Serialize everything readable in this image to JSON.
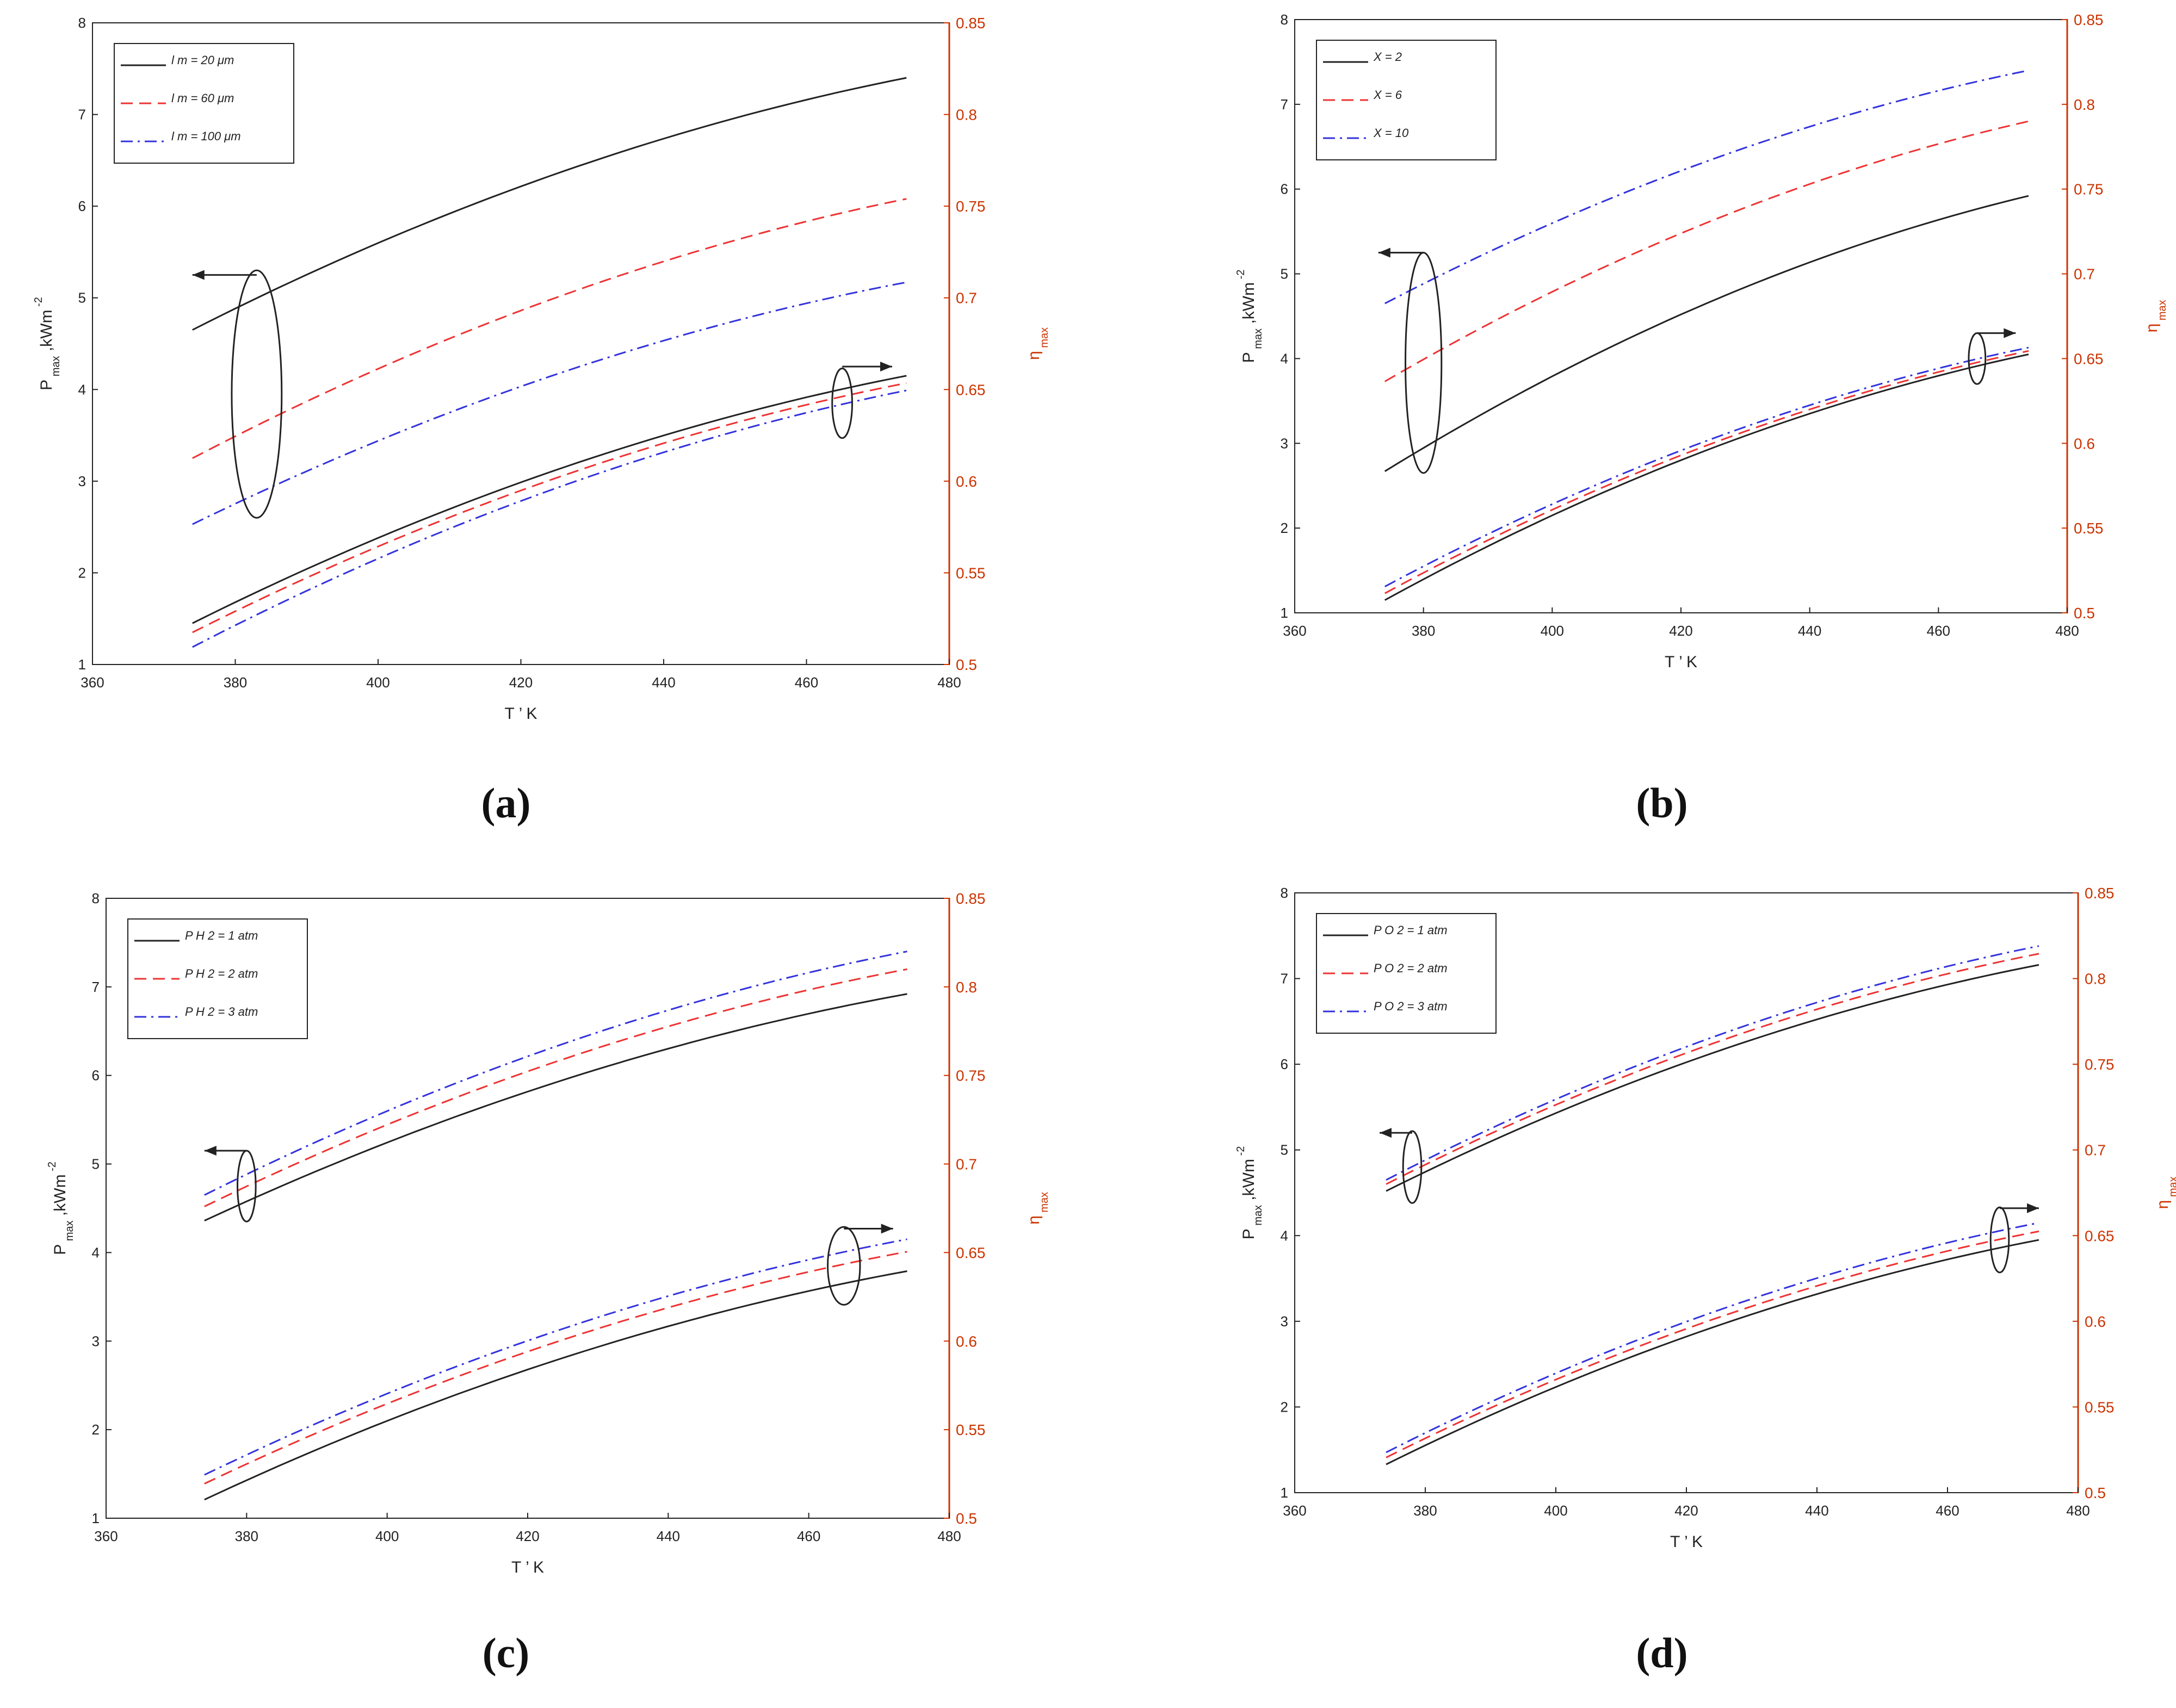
{
  "colors": {
    "series": [
      "#222222",
      "#ee3333",
      "#3333dd"
    ],
    "right_axis": "#cc3300",
    "frame": "#222222"
  },
  "chart_data": [
    {
      "type": "line",
      "caption": "(a)",
      "xlabel": "T ’ K",
      "ylabel_left": "P max ,kWm -2",
      "ylabel_right": "η max",
      "x": [
        374,
        474
      ],
      "xlim": [
        360,
        480
      ],
      "xticks": [
        360,
        380,
        400,
        420,
        440,
        460,
        480
      ],
      "ylim_left": [
        1,
        8
      ],
      "yticks_left": [
        1,
        2,
        3,
        4,
        5,
        6,
        7,
        8
      ],
      "ylim_right": [
        0.5,
        0.85
      ],
      "yticks_right": [
        0.5,
        0.55,
        0.6,
        0.65,
        0.7,
        0.75,
        0.8,
        0.85
      ],
      "legend_position": "top-left",
      "series": [
        {
          "name": "l m = 20 μm",
          "axis": "left",
          "style": "solid",
          "start": 4.65,
          "end": 7.4
        },
        {
          "name": "l m = 60 μm",
          "axis": "left",
          "style": "dashed",
          "start": 3.25,
          "end": 6.08
        },
        {
          "name": "l m = 100 μm",
          "axis": "left",
          "style": "dashdot",
          "start": 2.53,
          "end": 5.17
        },
        {
          "name": "l m = 20 μm",
          "axis": "right",
          "style": "solid",
          "start": 0.5225,
          "end": 0.6575
        },
        {
          "name": "l m = 60 μm",
          "axis": "right",
          "style": "dashed",
          "start": 0.5175,
          "end": 0.6535
        },
        {
          "name": "l m = 100 μm",
          "axis": "right",
          "style": "dashdot",
          "start": 0.5095,
          "end": 0.6495
        }
      ],
      "annotations": [
        {
          "kind": "ellipse-left-arrow",
          "cx": 383,
          "cy": 3.95,
          "rx": 3.5,
          "ry": 1.35,
          "arrow_to": [
            374,
            5.25
          ]
        },
        {
          "kind": "ellipse-right-arrow",
          "cx": 465,
          "cy": 3.85,
          "rx": 1.4,
          "ry": 0.38,
          "arrow_to": [
            472,
            4.25
          ]
        }
      ]
    },
    {
      "type": "line",
      "caption": "(b)",
      "xlabel": "T ’ K",
      "ylabel_left": "P max ,kWm -2",
      "ylabel_right": "η max",
      "x": [
        374,
        474
      ],
      "xlim": [
        360,
        480
      ],
      "xticks": [
        360,
        380,
        400,
        420,
        440,
        460,
        480
      ],
      "ylim_left": [
        1,
        8
      ],
      "yticks_left": [
        1,
        2,
        3,
        4,
        5,
        6,
        7,
        8
      ],
      "ylim_right": [
        0.5,
        0.85
      ],
      "yticks_right": [
        0.5,
        0.55,
        0.6,
        0.65,
        0.7,
        0.75,
        0.8,
        0.85
      ],
      "legend_position": "top-left",
      "series": [
        {
          "name": "X = 2",
          "axis": "left",
          "style": "solid",
          "start": 2.67,
          "end": 5.92
        },
        {
          "name": "X = 6",
          "axis": "left",
          "style": "dashed",
          "start": 3.73,
          "end": 6.8
        },
        {
          "name": "X = 10",
          "axis": "left",
          "style": "dashdot",
          "start": 4.65,
          "end": 7.4
        },
        {
          "name": "X = 2",
          "axis": "right",
          "style": "solid",
          "start": 0.5075,
          "end": 0.6525
        },
        {
          "name": "X = 6",
          "axis": "right",
          "style": "dashed",
          "start": 0.5115,
          "end": 0.6545
        },
        {
          "name": "X = 10",
          "axis": "right",
          "style": "dashdot",
          "start": 0.5155,
          "end": 0.6565
        }
      ],
      "annotations": [
        {
          "kind": "ellipse-left-arrow",
          "cx": 380,
          "cy": 3.95,
          "rx": 2.8,
          "ry": 1.3,
          "arrow_to": [
            373,
            5.25
          ]
        },
        {
          "kind": "ellipse-right-arrow",
          "cx": 466,
          "cy": 4.0,
          "rx": 1.3,
          "ry": 0.3,
          "arrow_to": [
            472,
            4.3
          ]
        }
      ]
    },
    {
      "type": "line",
      "caption": "(c)",
      "xlabel": "T ’ K",
      "ylabel_left": "P max ,kWm -2",
      "ylabel_right": "η max",
      "x": [
        374,
        474
      ],
      "xlim": [
        360,
        480
      ],
      "xticks": [
        360,
        380,
        400,
        420,
        440,
        460,
        480
      ],
      "ylim_left": [
        1,
        8
      ],
      "yticks_left": [
        1,
        2,
        3,
        4,
        5,
        6,
        7,
        8
      ],
      "ylim_right": [
        0.5,
        0.85
      ],
      "yticks_right": [
        0.5,
        0.55,
        0.6,
        0.65,
        0.7,
        0.75,
        0.8,
        0.85
      ],
      "legend_position": "top-left",
      "series": [
        {
          "name": "P H 2 = 1 atm",
          "axis": "left",
          "style": "solid",
          "start": 4.36,
          "end": 6.92
        },
        {
          "name": "P H 2 = 2 atm",
          "axis": "left",
          "style": "dashed",
          "start": 4.52,
          "end": 7.2
        },
        {
          "name": "P H 2 = 3 atm",
          "axis": "left",
          "style": "dashdot",
          "start": 4.65,
          "end": 7.4
        },
        {
          "name": "P H 2 = 1 atm",
          "axis": "right",
          "style": "solid",
          "start": 0.5105,
          "end": 0.6395
        },
        {
          "name": "P H 2 = 2 atm",
          "axis": "right",
          "style": "dashed",
          "start": 0.5195,
          "end": 0.6505
        },
        {
          "name": "P H 2 = 3 atm",
          "axis": "right",
          "style": "dashdot",
          "start": 0.5245,
          "end": 0.6575
        }
      ],
      "annotations": [
        {
          "kind": "ellipse-left-arrow",
          "cx": 380,
          "cy": 4.75,
          "rx": 1.3,
          "ry": 0.4,
          "arrow_to": [
            374,
            5.15
          ]
        },
        {
          "kind": "ellipse-right-arrow",
          "cx": 465,
          "cy": 3.85,
          "rx": 2.3,
          "ry": 0.44,
          "arrow_to": [
            472,
            4.27
          ]
        }
      ]
    },
    {
      "type": "line",
      "caption": "(d)",
      "xlabel": "T ’ K",
      "ylabel_left": "P max ,kWm -2",
      "ylabel_right": "η max",
      "x": [
        374,
        474
      ],
      "xlim": [
        360,
        480
      ],
      "xticks": [
        360,
        380,
        400,
        420,
        440,
        460,
        480
      ],
      "ylim_left": [
        1,
        8
      ],
      "yticks_left": [
        1,
        2,
        3,
        4,
        5,
        6,
        7,
        8
      ],
      "ylim_right": [
        0.5,
        0.85
      ],
      "yticks_right": [
        0.5,
        0.55,
        0.6,
        0.65,
        0.7,
        0.75,
        0.8,
        0.85
      ],
      "legend_position": "top-left",
      "series": [
        {
          "name": "P O 2 = 1 atm",
          "axis": "left",
          "style": "solid",
          "start": 4.52,
          "end": 7.16
        },
        {
          "name": "P O 2 = 2 atm",
          "axis": "left",
          "style": "dashed",
          "start": 4.6,
          "end": 7.29
        },
        {
          "name": "P O 2 = 3 atm",
          "axis": "left",
          "style": "dashdot",
          "start": 4.65,
          "end": 7.38
        },
        {
          "name": "P O 2 = 1 atm",
          "axis": "right",
          "style": "solid",
          "start": 0.5165,
          "end": 0.6475
        },
        {
          "name": "P O 2 = 2 atm",
          "axis": "right",
          "style": "dashed",
          "start": 0.5205,
          "end": 0.6525
        },
        {
          "name": "P O 2 = 3 atm",
          "axis": "right",
          "style": "dashdot",
          "start": 0.5235,
          "end": 0.6575
        }
      ],
      "annotations": [
        {
          "kind": "ellipse-left-arrow",
          "cx": 378,
          "cy": 4.8,
          "rx": 1.4,
          "ry": 0.42,
          "arrow_to": [
            373,
            5.2
          ]
        },
        {
          "kind": "ellipse-right-arrow",
          "cx": 468,
          "cy": 3.95,
          "rx": 1.4,
          "ry": 0.38,
          "arrow_to": [
            474,
            4.32
          ]
        }
      ]
    }
  ]
}
